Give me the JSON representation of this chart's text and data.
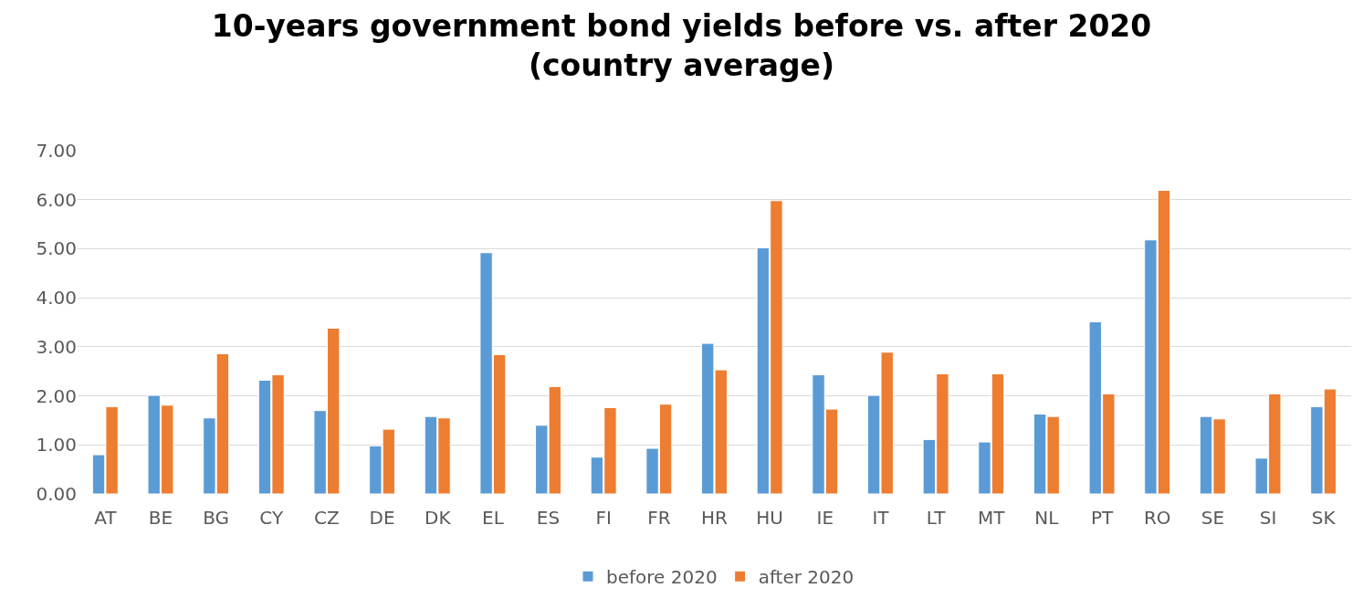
{
  "chart_data": {
    "type": "bar",
    "title": "10-years government bond yields before vs. after 2020\n(country average)",
    "categories": [
      "AT",
      "BE",
      "BG",
      "CY",
      "CZ",
      "DE",
      "DK",
      "EL",
      "ES",
      "FI",
      "FR",
      "HR",
      "HU",
      "IE",
      "IT",
      "LT",
      "MT",
      "NL",
      "PT",
      "RO",
      "SE",
      "SI",
      "SK"
    ],
    "series": [
      {
        "name": "before 2020",
        "color": "#5b9bd5",
        "values": [
          0.8,
          2.01,
          1.55,
          2.32,
          1.7,
          0.98,
          1.58,
          4.92,
          1.4,
          0.75,
          0.93,
          3.07,
          5.02,
          2.43,
          2.01,
          1.11,
          1.06,
          1.63,
          3.51,
          5.18,
          1.58,
          0.73,
          1.78
        ]
      },
      {
        "name": "after 2020",
        "color": "#ed7d31",
        "values": [
          1.78,
          1.81,
          2.86,
          2.43,
          3.38,
          1.32,
          1.55,
          2.84,
          2.19,
          1.76,
          1.83,
          2.53,
          5.98,
          1.73,
          2.89,
          2.45,
          2.45,
          1.58,
          2.04,
          6.19,
          1.53,
          2.04,
          2.14
        ]
      }
    ],
    "ylim": [
      0,
      7
    ],
    "yticks": [
      {
        "value": 0,
        "label": "0.00"
      },
      {
        "value": 1,
        "label": "1.00"
      },
      {
        "value": 2,
        "label": "2.00"
      },
      {
        "value": 3,
        "label": "3.00"
      },
      {
        "value": 4,
        "label": "4.00"
      },
      {
        "value": 5,
        "label": "5.00"
      },
      {
        "value": 6,
        "label": "6.00"
      },
      {
        "value": 7,
        "label": "7.00"
      }
    ],
    "grid": "y",
    "legend": "bottom"
  }
}
